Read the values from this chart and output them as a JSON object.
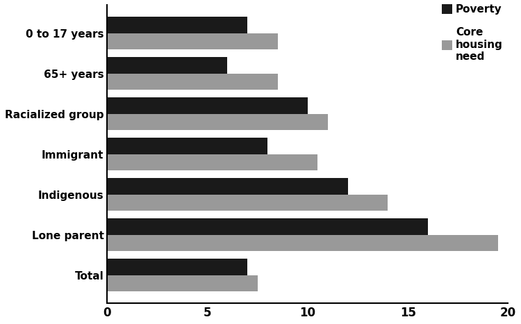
{
  "categories": [
    "Total",
    "Lone parent",
    "Indigenous",
    "Immigrant",
    "Racialized group",
    "65+ years",
    "0 to 17 years"
  ],
  "poverty": [
    7.0,
    16.0,
    12.0,
    8.0,
    10.0,
    6.0,
    7.0
  ],
  "core_housing_need": [
    7.5,
    19.5,
    14.0,
    10.5,
    11.0,
    8.5,
    8.5
  ],
  "poverty_color": "#1a1a1a",
  "housing_color": "#999999",
  "xlim": [
    0,
    20
  ],
  "xticks": [
    0,
    5,
    10,
    15,
    20
  ],
  "legend_poverty": "Poverty",
  "legend_housing": "Core\nhousing\nneed",
  "bar_width": 0.4,
  "figsize": [
    7.5,
    4.66
  ],
  "dpi": 100,
  "background_color": "#ffffff",
  "ytick_fontsize": 11,
  "xtick_fontsize": 12
}
